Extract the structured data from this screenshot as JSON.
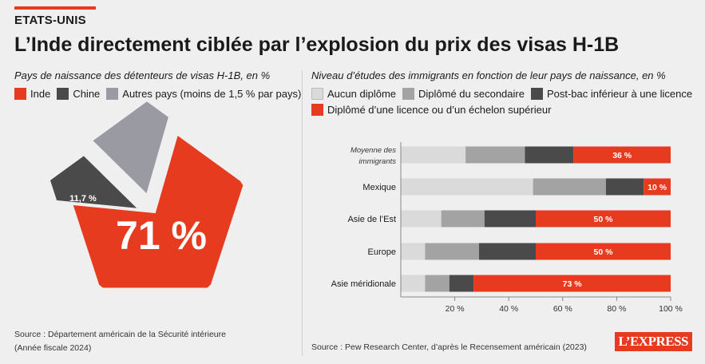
{
  "kicker": "ETATS-UNIS",
  "headline": "L’Inde directement ciblée par l’explosion du prix des visas H-1B",
  "left": {
    "subtitle": "Pays de naissance des détenteurs de visas H-1B, en %",
    "legend": [
      {
        "label": "Inde",
        "color": "#e63b1e"
      },
      {
        "label": "Chine",
        "color": "#4a4a4a"
      },
      {
        "label": "Autres pays (moins de 1,5 % par pays)",
        "color": "#9a9aa2"
      }
    ],
    "source_line1": "Source : Département américain de la Sécurité intérieure",
    "source_line2": "(Année fiscale 2024)"
  },
  "right": {
    "subtitle": "Niveau d’études des immigrants en fonction de leur pays de naissance, en %",
    "legend_row1": [
      {
        "label": "Aucun diplôme",
        "color": "#dadada"
      },
      {
        "label": "Diplômé du secondaire",
        "color": "#a3a3a3"
      },
      {
        "label": "Post-bac inférieur à une licence",
        "color": "#4a4a4a"
      }
    ],
    "legend_row2": [
      {
        "label": "Diplômé d’une licence ou d’un échelon supérieur",
        "color": "#e63b1e"
      }
    ],
    "source": "Source : Pew Research Center, d’après le Recensement américain (2023)"
  },
  "logo": "L’EXPRESS",
  "chart_data": [
    {
      "type": "pie",
      "title": "Pays de naissance des détenteurs de visas H-1B, en %",
      "categories": [
        "Inde",
        "Chine",
        "Autres pays (moins de 1,5 % par pays)"
      ],
      "values": [
        71,
        11.7,
        17.3
      ],
      "labels": [
        "71 %",
        "11,7 %",
        ""
      ],
      "colors": [
        "#e63b1e",
        "#4a4a4a",
        "#9a9aa2"
      ]
    },
    {
      "type": "bar",
      "orientation": "horizontal",
      "stacked": true,
      "title": "Niveau d’études des immigrants en fonction de leur pays de naissance, en %",
      "categories": [
        "Moyenne des immigrants",
        "Mexique",
        "Asie de l’Est",
        "Europe",
        "Asie méridionale"
      ],
      "series": [
        {
          "name": "Aucun diplôme",
          "color": "#dadada",
          "values": [
            24,
            49,
            15,
            9,
            9
          ]
        },
        {
          "name": "Diplômé du secondaire",
          "color": "#a3a3a3",
          "values": [
            22,
            27,
            16,
            20,
            9
          ]
        },
        {
          "name": "Post-bac inférieur à une licence",
          "color": "#4a4a4a",
          "values": [
            18,
            14,
            19,
            21,
            9
          ]
        },
        {
          "name": "Diplômé d’une licence ou d’un échelon supérieur",
          "color": "#e63b1e",
          "values": [
            36,
            10,
            50,
            50,
            73
          ],
          "labels": [
            "36 %",
            "10 %",
            "50 %",
            "50 %",
            "73 %"
          ]
        }
      ],
      "xticks": [
        "20 %",
        "40 %",
        "60 %",
        "80 %",
        "100 %"
      ],
      "xtick_values": [
        20,
        40,
        60,
        80,
        100
      ],
      "xlim": [
        0,
        100
      ],
      "grid": false
    }
  ]
}
